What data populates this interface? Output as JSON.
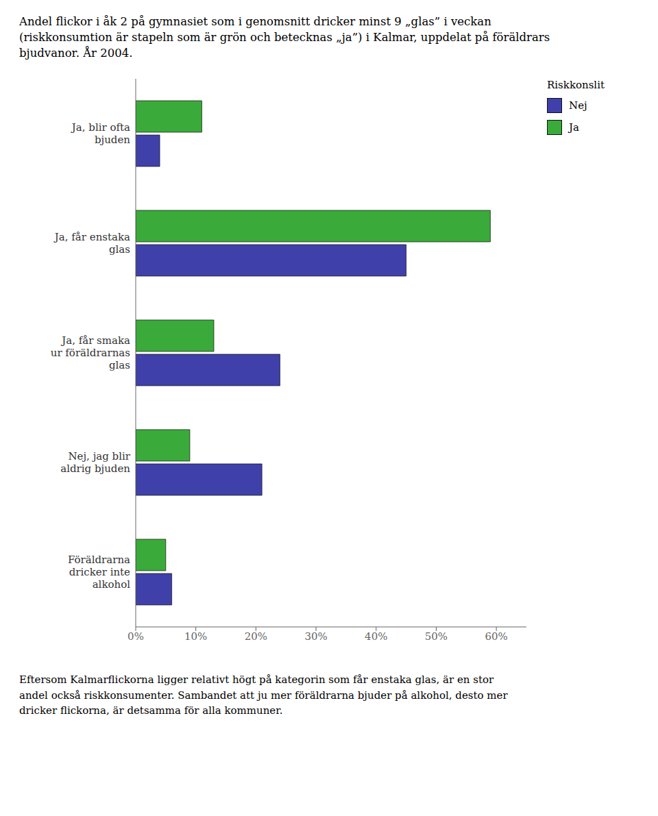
{
  "chart_data": {
    "type": "bar",
    "orientation": "horizontal",
    "title": "Andel flickor i åk 2 på gymnasiet som i genomsnitt dricker minst 9 „glas” i veckan\n(riskkonsumtion är stapeln som är grön och betecknas „ja”) i Kalmar, uppdelat på föräldrars\nbjudvanor. År 2004.",
    "categories": [
      "Ja, blir ofta\nbjuden",
      "Ja, får enstaka\nglas",
      "Ja, får smaka\nur föräldrarnas\nglas",
      "Nej, jag blir\naldrig bjuden",
      "Föräldrarna\ndricker inte\nalkohol"
    ],
    "series": [
      {
        "name": "Nej",
        "color": "#4040aa",
        "values": [
          4,
          45,
          24,
          21,
          6
        ]
      },
      {
        "name": "Ja",
        "color": "#3aaa3a",
        "values": [
          11,
          59,
          13,
          9,
          5
        ]
      }
    ],
    "legend_title": "Riskkonslit",
    "legend": "upper right",
    "xlim": [
      0,
      65
    ],
    "xticks": [
      {
        "value": 0,
        "label": "0%"
      },
      {
        "value": 10,
        "label": "10%"
      },
      {
        "value": 20,
        "label": "20%"
      },
      {
        "value": 30,
        "label": "30%"
      },
      {
        "value": 40,
        "label": "40%"
      },
      {
        "value": 50,
        "label": "50%"
      },
      {
        "value": 60,
        "label": "60%"
      }
    ],
    "grid": false,
    "footer": "Eftersom Kalmarflickorna ligger relativt högt på kategorin som får enstaka glas, är en stor\nandel också riskkonsumenter. Sambandet att ju mer föräldrarna bjuder på alkohol, desto mer\ndricker flickorna, är detsamma för alla kommuner."
  }
}
